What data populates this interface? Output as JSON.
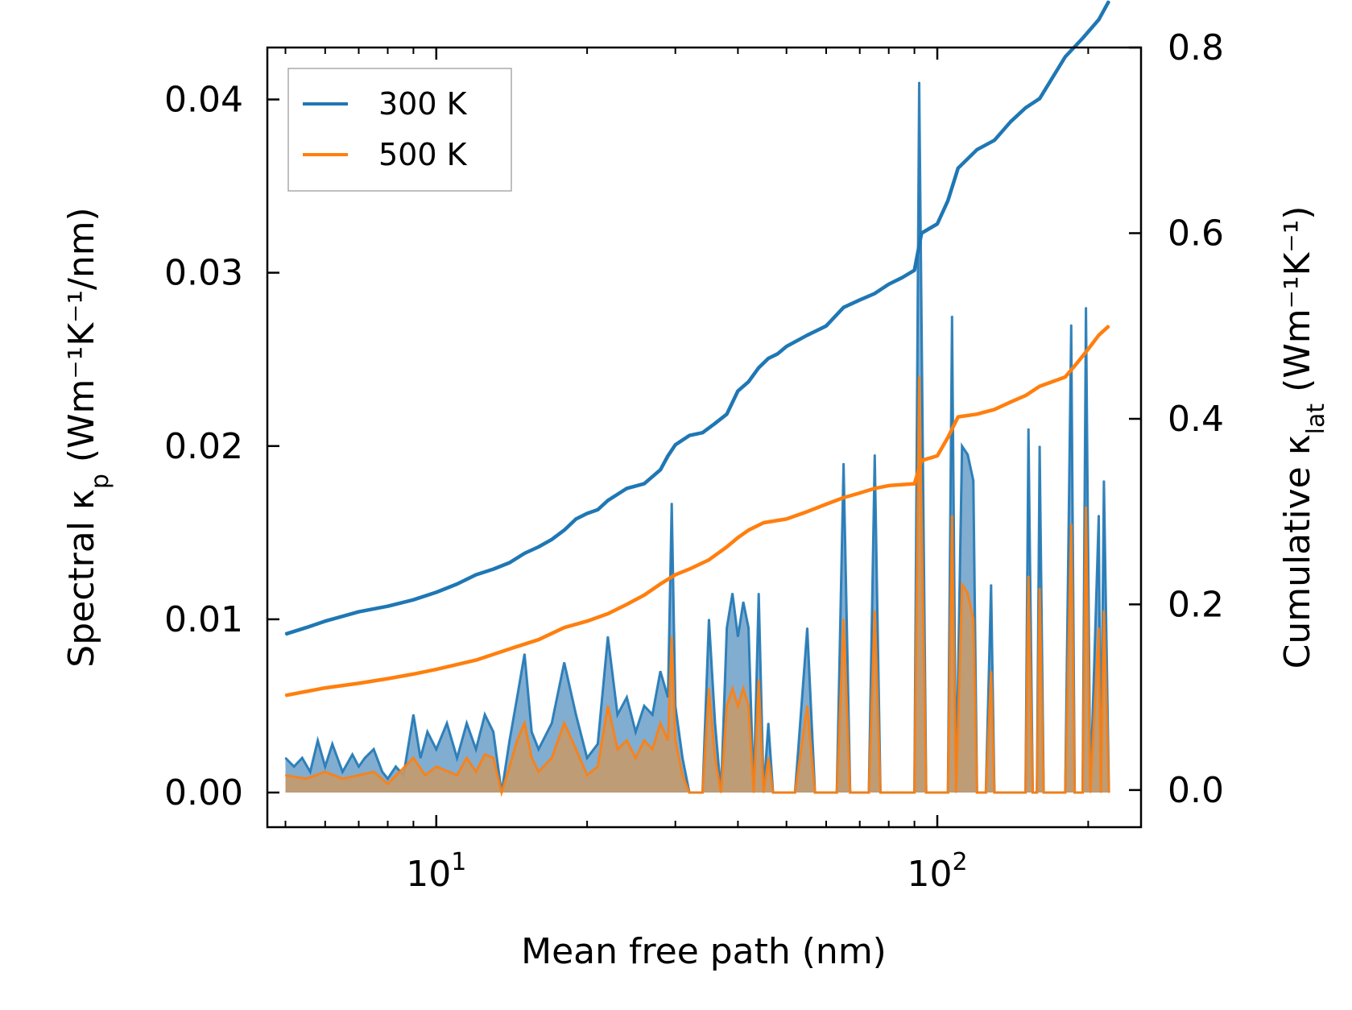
{
  "chart_data": {
    "type": "area",
    "title": "",
    "xlabel": "Mean free path (nm)",
    "ylabel_left": {
      "base": "Spectral κ",
      "sub": "p",
      "units": " (Wm⁻¹K⁻¹/nm)"
    },
    "ylabel_right": {
      "base": "Cumulative κ",
      "sub": "lat",
      "units": " (Wm⁻¹K⁻¹)"
    },
    "xscale": "log",
    "xlim": [
      4.6,
      255
    ],
    "ylim_left": [
      -0.002,
      0.043
    ],
    "ylim_right": [
      -0.04,
      0.8
    ],
    "x_ticks": [
      {
        "value": 10,
        "base": "10",
        "exp": "1"
      },
      {
        "value": 100,
        "base": "10",
        "exp": "2"
      }
    ],
    "y_ticks_left": [
      "0.00",
      "0.01",
      "0.02",
      "0.03",
      "0.04"
    ],
    "y_ticks_right": [
      "0.0",
      "0.2",
      "0.4",
      "0.6",
      "0.8"
    ],
    "legend": {
      "position": "top-left",
      "entries": [
        "300 K",
        "500 K"
      ]
    },
    "colors": {
      "300 K": "#1f77b4",
      "500 K": "#ff7f0e",
      "fill_300": "#6b9fc9",
      "fill_500": "#c49a6c"
    },
    "cumulative_series": [
      {
        "name": "300 K",
        "axis": "right",
        "points": [
          [
            5,
            0.168
          ],
          [
            5.5,
            0.175
          ],
          [
            6,
            0.182
          ],
          [
            7,
            0.192
          ],
          [
            8,
            0.198
          ],
          [
            9,
            0.205
          ],
          [
            10,
            0.213
          ],
          [
            11,
            0.222
          ],
          [
            12,
            0.232
          ],
          [
            13,
            0.238
          ],
          [
            14,
            0.245
          ],
          [
            15,
            0.255
          ],
          [
            16,
            0.262
          ],
          [
            17,
            0.27
          ],
          [
            18,
            0.28
          ],
          [
            19,
            0.292
          ],
          [
            20,
            0.298
          ],
          [
            21,
            0.302
          ],
          [
            22,
            0.312
          ],
          [
            24,
            0.325
          ],
          [
            26,
            0.33
          ],
          [
            28,
            0.345
          ],
          [
            29,
            0.36
          ],
          [
            30,
            0.372
          ],
          [
            32,
            0.382
          ],
          [
            34,
            0.385
          ],
          [
            36,
            0.395
          ],
          [
            38,
            0.405
          ],
          [
            40,
            0.43
          ],
          [
            42,
            0.44
          ],
          [
            44,
            0.455
          ],
          [
            46,
            0.465
          ],
          [
            48,
            0.47
          ],
          [
            50,
            0.478
          ],
          [
            55,
            0.49
          ],
          [
            60,
            0.5
          ],
          [
            65,
            0.52
          ],
          [
            70,
            0.528
          ],
          [
            75,
            0.535
          ],
          [
            80,
            0.545
          ],
          [
            85,
            0.552
          ],
          [
            90,
            0.56
          ],
          [
            93,
            0.6
          ],
          [
            100,
            0.61
          ],
          [
            105,
            0.635
          ],
          [
            110,
            0.67
          ],
          [
            120,
            0.69
          ],
          [
            130,
            0.7
          ],
          [
            140,
            0.72
          ],
          [
            150,
            0.735
          ],
          [
            160,
            0.745
          ],
          [
            180,
            0.79
          ],
          [
            195,
            0.81
          ],
          [
            210,
            0.83
          ],
          [
            220,
            0.85
          ]
        ]
      },
      {
        "name": "500 K",
        "axis": "right",
        "points": [
          [
            5,
            0.102
          ],
          [
            6,
            0.11
          ],
          [
            7,
            0.115
          ],
          [
            8,
            0.12
          ],
          [
            9,
            0.125
          ],
          [
            10,
            0.13
          ],
          [
            12,
            0.14
          ],
          [
            14,
            0.152
          ],
          [
            16,
            0.162
          ],
          [
            18,
            0.175
          ],
          [
            20,
            0.182
          ],
          [
            22,
            0.19
          ],
          [
            24,
            0.2
          ],
          [
            26,
            0.21
          ],
          [
            28,
            0.222
          ],
          [
            30,
            0.232
          ],
          [
            32,
            0.238
          ],
          [
            35,
            0.248
          ],
          [
            38,
            0.262
          ],
          [
            40,
            0.272
          ],
          [
            42,
            0.28
          ],
          [
            45,
            0.288
          ],
          [
            50,
            0.292
          ],
          [
            55,
            0.3
          ],
          [
            60,
            0.308
          ],
          [
            65,
            0.315
          ],
          [
            70,
            0.32
          ],
          [
            75,
            0.325
          ],
          [
            80,
            0.328
          ],
          [
            90,
            0.33
          ],
          [
            93,
            0.355
          ],
          [
            100,
            0.36
          ],
          [
            105,
            0.38
          ],
          [
            110,
            0.402
          ],
          [
            120,
            0.405
          ],
          [
            130,
            0.41
          ],
          [
            140,
            0.418
          ],
          [
            150,
            0.425
          ],
          [
            160,
            0.435
          ],
          [
            180,
            0.445
          ],
          [
            190,
            0.46
          ],
          [
            200,
            0.475
          ],
          [
            210,
            0.49
          ],
          [
            220,
            0.5
          ]
        ]
      }
    ],
    "spectral_series": [
      {
        "name": "300 K",
        "axis": "left",
        "points": [
          [
            5,
            0.002
          ],
          [
            5.2,
            0.0015
          ],
          [
            5.4,
            0.002
          ],
          [
            5.6,
            0.0012
          ],
          [
            5.8,
            0.003
          ],
          [
            6,
            0.0015
          ],
          [
            6.2,
            0.0028
          ],
          [
            6.5,
            0.0012
          ],
          [
            6.8,
            0.0022
          ],
          [
            7.0,
            0.0015
          ],
          [
            7.2,
            0.002
          ],
          [
            7.5,
            0.0025
          ],
          [
            7.8,
            0.0012
          ],
          [
            8,
            0.0008
          ],
          [
            8.3,
            0.0015
          ],
          [
            8.6,
            0.001
          ],
          [
            9,
            0.0045
          ],
          [
            9.3,
            0.002
          ],
          [
            9.6,
            0.0035
          ],
          [
            10,
            0.0025
          ],
          [
            10.5,
            0.004
          ],
          [
            11,
            0.002
          ],
          [
            11.5,
            0.004
          ],
          [
            12,
            0.0025
          ],
          [
            12.5,
            0.0045
          ],
          [
            13,
            0.0035
          ],
          [
            13.5,
            0.0
          ],
          [
            14,
            0.003
          ],
          [
            14.5,
            0.0055
          ],
          [
            15,
            0.008
          ],
          [
            15.5,
            0.0035
          ],
          [
            16,
            0.0025
          ],
          [
            17,
            0.004
          ],
          [
            18,
            0.0075
          ],
          [
            19,
            0.0045
          ],
          [
            20,
            0.002
          ],
          [
            21,
            0.0028
          ],
          [
            22,
            0.009
          ],
          [
            23,
            0.0045
          ],
          [
            24,
            0.0055
          ],
          [
            25,
            0.0035
          ],
          [
            26,
            0.005
          ],
          [
            27,
            0.0045
          ],
          [
            28,
            0.007
          ],
          [
            29,
            0.0055
          ],
          [
            29.5,
            0.0167
          ],
          [
            30,
            0.005
          ],
          [
            31,
            0.002
          ],
          [
            32,
            0.0
          ],
          [
            34,
            0.0
          ],
          [
            35,
            0.01
          ],
          [
            36,
            0.004
          ],
          [
            37,
            0.0
          ],
          [
            38,
            0.0095
          ],
          [
            39,
            0.0115
          ],
          [
            40,
            0.009
          ],
          [
            41,
            0.011
          ],
          [
            42,
            0.0095
          ],
          [
            43,
            0.0
          ],
          [
            44,
            0.0115
          ],
          [
            45,
            0.0
          ],
          [
            46,
            0.004
          ],
          [
            47,
            0.0
          ],
          [
            48,
            0.0
          ],
          [
            50,
            0.0
          ],
          [
            52,
            0.0
          ],
          [
            55,
            0.0095
          ],
          [
            57,
            0.0
          ],
          [
            60,
            0.0
          ],
          [
            63,
            0.0
          ],
          [
            65,
            0.019
          ],
          [
            67,
            0.0
          ],
          [
            70,
            0.0
          ],
          [
            73,
            0.0
          ],
          [
            75,
            0.0195
          ],
          [
            77,
            0.0
          ],
          [
            80,
            0.0
          ],
          [
            85,
            0.0
          ],
          [
            90,
            0.0
          ],
          [
            92,
            0.041
          ],
          [
            95,
            0.0
          ],
          [
            100,
            0.0
          ],
          [
            105,
            0.0
          ],
          [
            107,
            0.0275
          ],
          [
            109,
            0.0
          ],
          [
            112,
            0.02
          ],
          [
            115,
            0.0195
          ],
          [
            118,
            0.018
          ],
          [
            120,
            0.0
          ],
          [
            125,
            0.0
          ],
          [
            128,
            0.012
          ],
          [
            130,
            0.0
          ],
          [
            140,
            0.0
          ],
          [
            150,
            0.0
          ],
          [
            152,
            0.021
          ],
          [
            155,
            0.0
          ],
          [
            158,
            0.0
          ],
          [
            160,
            0.02
          ],
          [
            163,
            0.0
          ],
          [
            170,
            0.0
          ],
          [
            180,
            0.0
          ],
          [
            185,
            0.027
          ],
          [
            188,
            0.0
          ],
          [
            195,
            0.0
          ],
          [
            198,
            0.028
          ],
          [
            202,
            0.0
          ],
          [
            210,
            0.016
          ],
          [
            212,
            0.0
          ],
          [
            215,
            0.018
          ],
          [
            220,
            0.0
          ]
        ]
      },
      {
        "name": "500 K",
        "axis": "left",
        "points": [
          [
            5,
            0.001
          ],
          [
            5.5,
            0.0008
          ],
          [
            6,
            0.0012
          ],
          [
            6.5,
            0.0008
          ],
          [
            7,
            0.001
          ],
          [
            7.5,
            0.0012
          ],
          [
            8,
            0.0005
          ],
          [
            9,
            0.002
          ],
          [
            9.5,
            0.001
          ],
          [
            10,
            0.0015
          ],
          [
            11,
            0.001
          ],
          [
            11.5,
            0.002
          ],
          [
            12,
            0.0012
          ],
          [
            12.5,
            0.0022
          ],
          [
            13,
            0.002
          ],
          [
            13.5,
            0.0
          ],
          [
            14,
            0.0015
          ],
          [
            14.5,
            0.003
          ],
          [
            15,
            0.004
          ],
          [
            15.5,
            0.002
          ],
          [
            16,
            0.0012
          ],
          [
            17,
            0.002
          ],
          [
            18,
            0.004
          ],
          [
            19,
            0.0025
          ],
          [
            20,
            0.001
          ],
          [
            21,
            0.0015
          ],
          [
            22,
            0.005
          ],
          [
            23,
            0.0025
          ],
          [
            24,
            0.003
          ],
          [
            25,
            0.002
          ],
          [
            26,
            0.003
          ],
          [
            27,
            0.0025
          ],
          [
            28,
            0.004
          ],
          [
            29,
            0.003
          ],
          [
            29.5,
            0.009
          ],
          [
            30,
            0.003
          ],
          [
            31,
            0.001
          ],
          [
            32,
            0.0
          ],
          [
            34,
            0.0
          ],
          [
            35,
            0.006
          ],
          [
            36,
            0.002
          ],
          [
            37,
            0.0
          ],
          [
            38,
            0.005
          ],
          [
            39,
            0.006
          ],
          [
            40,
            0.005
          ],
          [
            41,
            0.006
          ],
          [
            42,
            0.005
          ],
          [
            43,
            0.0
          ],
          [
            44,
            0.0065
          ],
          [
            45,
            0.0
          ],
          [
            46,
            0.002
          ],
          [
            47,
            0.0
          ],
          [
            48,
            0.0
          ],
          [
            50,
            0.0
          ],
          [
            52,
            0.0
          ],
          [
            55,
            0.005
          ],
          [
            57,
            0.0
          ],
          [
            60,
            0.0
          ],
          [
            63,
            0.0
          ],
          [
            65,
            0.01
          ],
          [
            67,
            0.0
          ],
          [
            70,
            0.0
          ],
          [
            73,
            0.0
          ],
          [
            75,
            0.0105
          ],
          [
            77,
            0.0
          ],
          [
            80,
            0.0
          ],
          [
            85,
            0.0
          ],
          [
            90,
            0.0
          ],
          [
            92,
            0.024
          ],
          [
            95,
            0.0
          ],
          [
            100,
            0.0
          ],
          [
            105,
            0.0
          ],
          [
            107,
            0.016
          ],
          [
            109,
            0.0
          ],
          [
            112,
            0.012
          ],
          [
            115,
            0.0115
          ],
          [
            118,
            0.01
          ],
          [
            120,
            0.0
          ],
          [
            125,
            0.0
          ],
          [
            128,
            0.007
          ],
          [
            130,
            0.0
          ],
          [
            140,
            0.0
          ],
          [
            150,
            0.0
          ],
          [
            152,
            0.0125
          ],
          [
            155,
            0.0
          ],
          [
            158,
            0.0
          ],
          [
            160,
            0.0118
          ],
          [
            163,
            0.0
          ],
          [
            170,
            0.0
          ],
          [
            180,
            0.0
          ],
          [
            185,
            0.0155
          ],
          [
            188,
            0.0
          ],
          [
            195,
            0.0
          ],
          [
            198,
            0.0165
          ],
          [
            202,
            0.0
          ],
          [
            210,
            0.0095
          ],
          [
            212,
            0.0
          ],
          [
            215,
            0.0105
          ],
          [
            220,
            0.0
          ]
        ]
      }
    ]
  }
}
